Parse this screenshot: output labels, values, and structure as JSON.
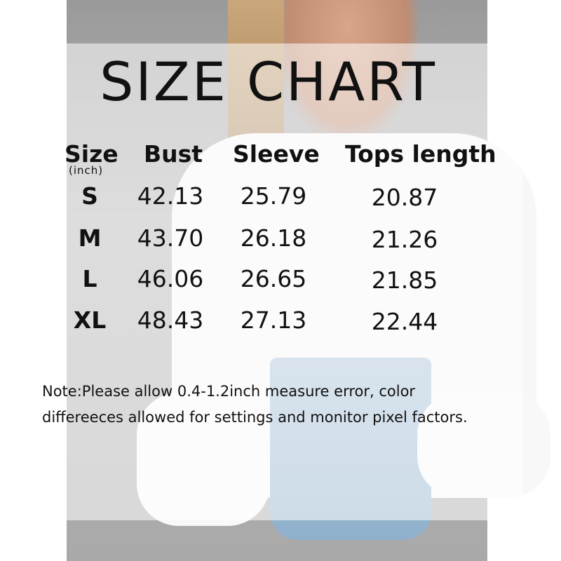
{
  "title": "SIZE CHART",
  "table": {
    "headers": [
      "Size",
      "Bust",
      "Sleeve",
      "Tops length"
    ],
    "unit": "(inch)",
    "rows": [
      [
        "S",
        "42.13",
        "25.79",
        "20.87"
      ],
      [
        "M",
        "43.70",
        "26.18",
        "21.26"
      ],
      [
        "L",
        "46.06",
        "26.65",
        "21.85"
      ],
      [
        "XL",
        "48.43",
        "27.13",
        "22.44"
      ]
    ]
  },
  "note": {
    "line1": "Note:Please allow 0.4-1.2inch measure error, color",
    "line2": "differeeces allowed for settings and monitor pixel factors."
  }
}
